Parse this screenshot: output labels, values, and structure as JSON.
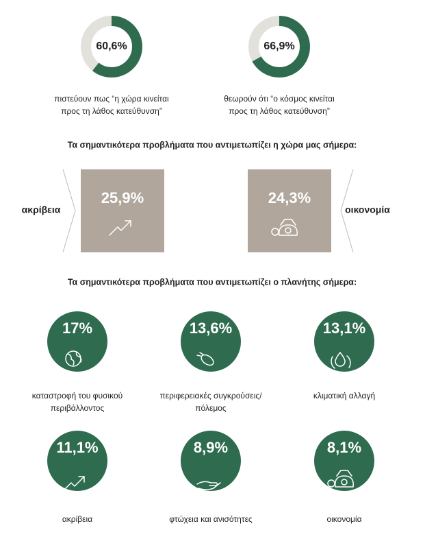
{
  "donuts": [
    {
      "value": 60.6,
      "label": "60,6%",
      "caption": [
        "πιστεύουν πως “η χώρα κινείται",
        "προς τη λάθος κατεύθυνση”"
      ]
    },
    {
      "value": 66.9,
      "label": "66,9%",
      "caption": [
        "θεωρούν ότι “ο κόσμος κινείται",
        "προς τη λάθος κατεύθυνση”"
      ]
    }
  ],
  "country": {
    "heading": "Τα σημαντικότερα προβλήματα που αντιμετωπίζει η χώρα μας σήμερα:",
    "items": [
      {
        "label": "25,9%",
        "name": "ακρίβεια"
      },
      {
        "label": "24,3%",
        "name": "οικονομία"
      }
    ]
  },
  "planet": {
    "heading": "Τα σημαντικότερα προβλήματα που αντιμετωπίζει ο πλανήτης σήμερα:",
    "items": [
      {
        "label": "17%",
        "caption": [
          "καταστροφή του φυσικού",
          "περιβάλλοντος"
        ]
      },
      {
        "label": "13,6%",
        "caption": [
          "περιφερειακές συγκρούσεις/",
          "πόλεμος"
        ]
      },
      {
        "label": "13,1%",
        "caption": [
          "κλιματική αλλαγή"
        ]
      },
      {
        "label": "11,1%",
        "caption": [
          "ακρίβεια"
        ]
      },
      {
        "label": "8,9%",
        "caption": [
          "φτώχεια και ανισότητες"
        ]
      },
      {
        "label": "8,1%",
        "caption": [
          "οικονομία"
        ]
      }
    ]
  }
}
